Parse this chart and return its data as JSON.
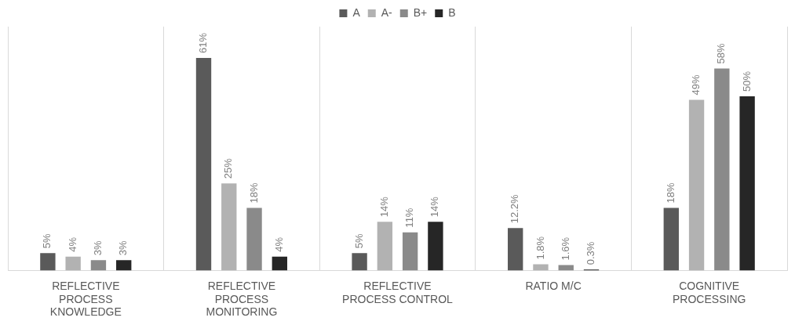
{
  "chart_data": {
    "type": "bar",
    "categories": [
      "REFLECTIVE PROCESS KNOWLEDGE",
      "REFLECTIVE PROCESS MONITORING",
      "REFLECTIVE PROCESS CONTROL",
      "RATIO M/C",
      "COGNITIVE PROCESSING"
    ],
    "series": [
      {
        "name": "A",
        "color": "#5a5a5a",
        "values": [
          5,
          61,
          5,
          12.2,
          18
        ],
        "value_labels": [
          "5%",
          "61%",
          "5%",
          "12.2%",
          "18%"
        ]
      },
      {
        "name": "A-",
        "color": "#b2b2b2",
        "values": [
          4,
          25,
          14,
          1.8,
          49
        ],
        "value_labels": [
          "4%",
          "25%",
          "14%",
          "1.8%",
          "49%"
        ]
      },
      {
        "name": "B+",
        "color": "#8a8a8a",
        "values": [
          3,
          18,
          11,
          1.6,
          58
        ],
        "value_labels": [
          "3%",
          "18%",
          "11%",
          "1.6%",
          "58%"
        ]
      },
      {
        "name": "B",
        "color": "#262626",
        "values": [
          3,
          4,
          14,
          0.3,
          50
        ],
        "value_labels": [
          "3%",
          "4%",
          "14%",
          "0.3%",
          "50%"
        ]
      }
    ],
    "grid": "x",
    "legend": "top"
  }
}
